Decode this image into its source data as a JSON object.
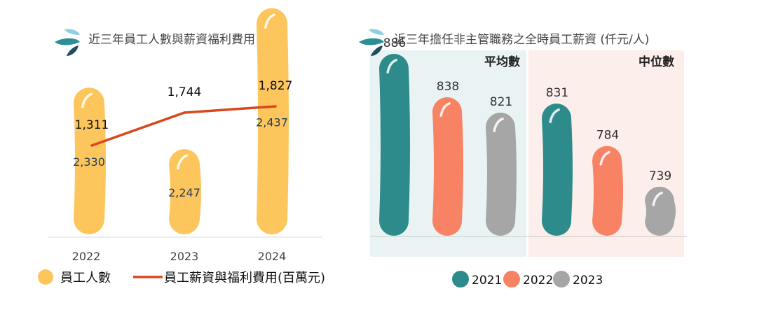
{
  "colors": {
    "employee_bar": "#FDC65D",
    "expense_line": "#D9471C",
    "y2021": "#2E8B8C",
    "y2022": "#F78264",
    "y2023": "#A6A6A6",
    "avg_bg": "#EAF3F4",
    "median_bg": "#FCEEEA",
    "logo_light": "#8FD0E0",
    "logo_mid": "#2B8F97",
    "logo_dark": "#1E4E5F"
  },
  "chart_data": [
    {
      "type": "bar",
      "title": "近三年員工人數與薪資福利費用",
      "categories": [
        "2022",
        "2023",
        "2024"
      ],
      "series": [
        {
          "name": "員工人數",
          "type": "bar",
          "values": [
            2330,
            2247,
            2437
          ],
          "labels": [
            "2,330",
            "2,247",
            "2,437"
          ]
        },
        {
          "name": "員工薪資與福利費用(百萬元)",
          "type": "line",
          "values": [
            1311,
            1744,
            1827
          ],
          "labels": [
            "1,311",
            "1,744",
            "1,827"
          ]
        }
      ],
      "legend_position": "bottom-left"
    },
    {
      "type": "bar",
      "title": "近三年擔任非主管職務之全時員工薪資 (仟元/人)",
      "groups": [
        {
          "label": "平均數",
          "values": [
            886,
            838,
            821
          ]
        },
        {
          "label": "中位數",
          "values": [
            831,
            784,
            739
          ]
        }
      ],
      "series_names": [
        "2021",
        "2022",
        "2023"
      ],
      "legend_position": "bottom-center"
    }
  ]
}
